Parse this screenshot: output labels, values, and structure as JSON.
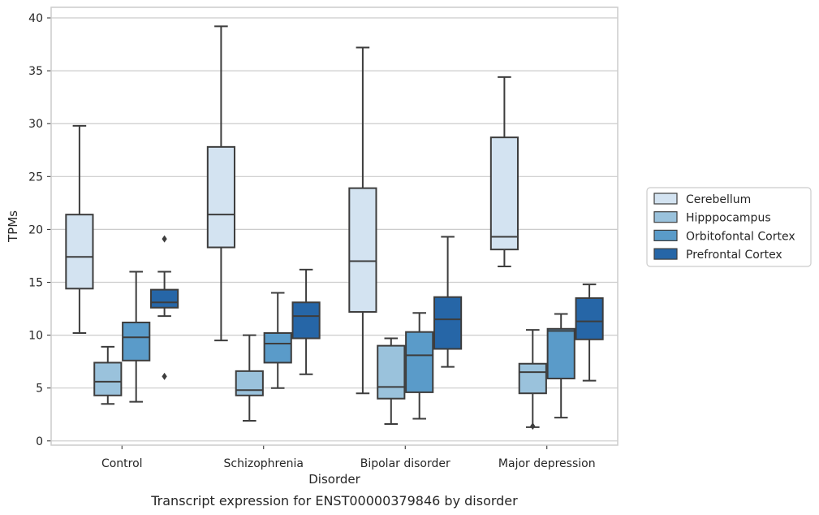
{
  "chart_data": {
    "type": "box",
    "xlabel": "Disorder",
    "ylabel": "TPMs",
    "ylim": [
      -0.4,
      41
    ],
    "yticks": [
      0,
      5,
      10,
      15,
      20,
      25,
      30,
      35,
      40
    ],
    "grid": "horizontal",
    "legend_position": "right",
    "categories": [
      "Control",
      "Schizophrenia",
      "Bipolar disorder",
      "Major depression"
    ],
    "series": [
      {
        "name": "Cerebellum",
        "color": "#d3e3f1",
        "boxes": [
          {
            "min": 10.2,
            "q1": 14.4,
            "median": 17.4,
            "q3": 21.4,
            "max": 29.8,
            "outliers": []
          },
          {
            "min": 9.5,
            "q1": 18.3,
            "median": 21.4,
            "q3": 27.8,
            "max": 39.2,
            "outliers": []
          },
          {
            "min": 4.5,
            "q1": 12.2,
            "median": 17.0,
            "q3": 23.9,
            "max": 37.2,
            "outliers": []
          },
          {
            "min": 16.5,
            "q1": 18.1,
            "median": 19.3,
            "q3": 28.7,
            "max": 34.4,
            "outliers": []
          }
        ]
      },
      {
        "name": "Hipppocampus",
        "color": "#9ac2dc",
        "boxes": [
          {
            "min": 3.5,
            "q1": 4.3,
            "median": 5.6,
            "q3": 7.4,
            "max": 8.9,
            "outliers": []
          },
          {
            "min": 1.9,
            "q1": 4.3,
            "median": 4.8,
            "q3": 6.6,
            "max": 10.0,
            "outliers": []
          },
          {
            "min": 1.6,
            "q1": 4.0,
            "median": 5.1,
            "q3": 9.0,
            "max": 9.7,
            "outliers": []
          },
          {
            "min": 1.3,
            "q1": 4.5,
            "median": 6.5,
            "q3": 7.3,
            "max": 10.5,
            "outliers": [
              1.4
            ]
          }
        ]
      },
      {
        "name": "Orbitofontal Cortex",
        "color": "#5a9bc9",
        "boxes": [
          {
            "min": 3.7,
            "q1": 7.6,
            "median": 9.8,
            "q3": 11.2,
            "max": 16.0,
            "outliers": []
          },
          {
            "min": 5.0,
            "q1": 7.4,
            "median": 9.2,
            "q3": 10.2,
            "max": 14.0,
            "outliers": []
          },
          {
            "min": 2.1,
            "q1": 4.6,
            "median": 8.1,
            "q3": 10.3,
            "max": 12.1,
            "outliers": []
          },
          {
            "min": 2.2,
            "q1": 5.9,
            "median": 10.4,
            "q3": 10.6,
            "max": 12.0,
            "outliers": []
          }
        ]
      },
      {
        "name": "Prefrontal Cortex",
        "color": "#2666a7",
        "boxes": [
          {
            "min": 11.8,
            "q1": 12.6,
            "median": 13.1,
            "q3": 14.3,
            "max": 16.0,
            "outliers": [
              19.1,
              6.1
            ]
          },
          {
            "min": 6.3,
            "q1": 9.7,
            "median": 11.8,
            "q3": 13.1,
            "max": 16.2,
            "outliers": []
          },
          {
            "min": 7.0,
            "q1": 8.7,
            "median": 11.5,
            "q3": 13.6,
            "max": 19.3,
            "outliers": []
          },
          {
            "min": 5.7,
            "q1": 9.6,
            "median": 11.3,
            "q3": 13.5,
            "max": 14.8,
            "outliers": []
          }
        ]
      }
    ],
    "caption": "Transcript expression for ENST00000379846 by disorder"
  }
}
